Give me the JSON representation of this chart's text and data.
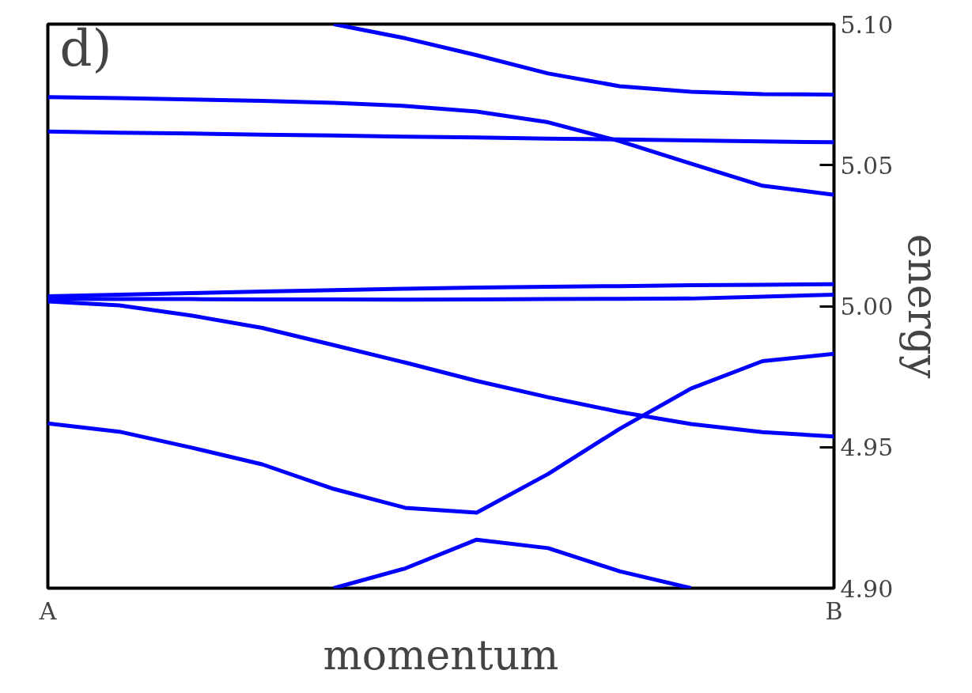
{
  "chart_data": {
    "type": "line",
    "xlabel": "momentum",
    "ylabel": "energy",
    "annotations": [
      "d)"
    ],
    "categories": [
      "A",
      null,
      null,
      null,
      null,
      null,
      null,
      null,
      null,
      null,
      null,
      "B"
    ],
    "ylim": [
      4.9,
      5.1
    ],
    "yticks": [
      {
        "value": 4.9,
        "label": "4.90"
      },
      {
        "value": 4.95,
        "label": "4.95"
      },
      {
        "value": 5.0,
        "label": "5.00"
      },
      {
        "value": 5.05,
        "label": "5.05"
      },
      {
        "value": 5.1,
        "label": "5.10"
      }
    ],
    "grid": false,
    "marker": "none",
    "line_style": "solid",
    "series": [
      {
        "color": "#0000ff",
        "values": [
          null,
          null,
          null,
          null,
          5.1,
          5.095,
          5.089,
          5.0825,
          5.078,
          5.076,
          5.0752,
          5.075
        ]
      },
      {
        "color": "#0000ff",
        "values": [
          5.0741,
          5.0738,
          5.0733,
          5.0728,
          5.0721,
          5.071,
          5.069,
          5.0652,
          5.0585,
          5.0505,
          5.0427,
          5.0395
        ]
      },
      {
        "color": "#0000ff",
        "values": [
          5.0619,
          5.0615,
          5.0612,
          5.0608,
          5.0605,
          5.0601,
          5.0598,
          5.0594,
          5.0591,
          5.0588,
          5.0584,
          5.0581
        ]
      },
      {
        "color": "#0000ff",
        "values": [
          5.0035,
          5.0041,
          5.0046,
          5.0052,
          5.0057,
          5.0062,
          5.0066,
          5.0069,
          5.0071,
          5.0074,
          5.0076,
          5.0078
        ]
      },
      {
        "color": "#0000ff",
        "values": [
          5.0026,
          5.0025,
          5.0025,
          5.0024,
          5.0024,
          5.0023,
          5.0024,
          5.0025,
          5.0026,
          5.0027,
          5.0034,
          5.0041
        ]
      },
      {
        "color": "#0000ff",
        "values": [
          5.0017,
          5.0003,
          4.9967,
          4.9923,
          4.9862,
          4.98,
          4.9735,
          4.9677,
          4.9625,
          4.9582,
          4.9553,
          4.9538
        ]
      },
      {
        "color": "#0000ff",
        "values": [
          4.9584,
          4.9555,
          4.9499,
          4.9439,
          4.9352,
          4.9285,
          4.9268,
          4.9405,
          4.9565,
          4.9708,
          4.9805,
          4.9831
        ]
      },
      {
        "color": "#0000ff",
        "values": [
          null,
          null,
          null,
          null,
          4.9,
          4.907,
          4.9172,
          4.9142,
          4.906,
          4.9,
          null,
          null
        ]
      }
    ]
  }
}
